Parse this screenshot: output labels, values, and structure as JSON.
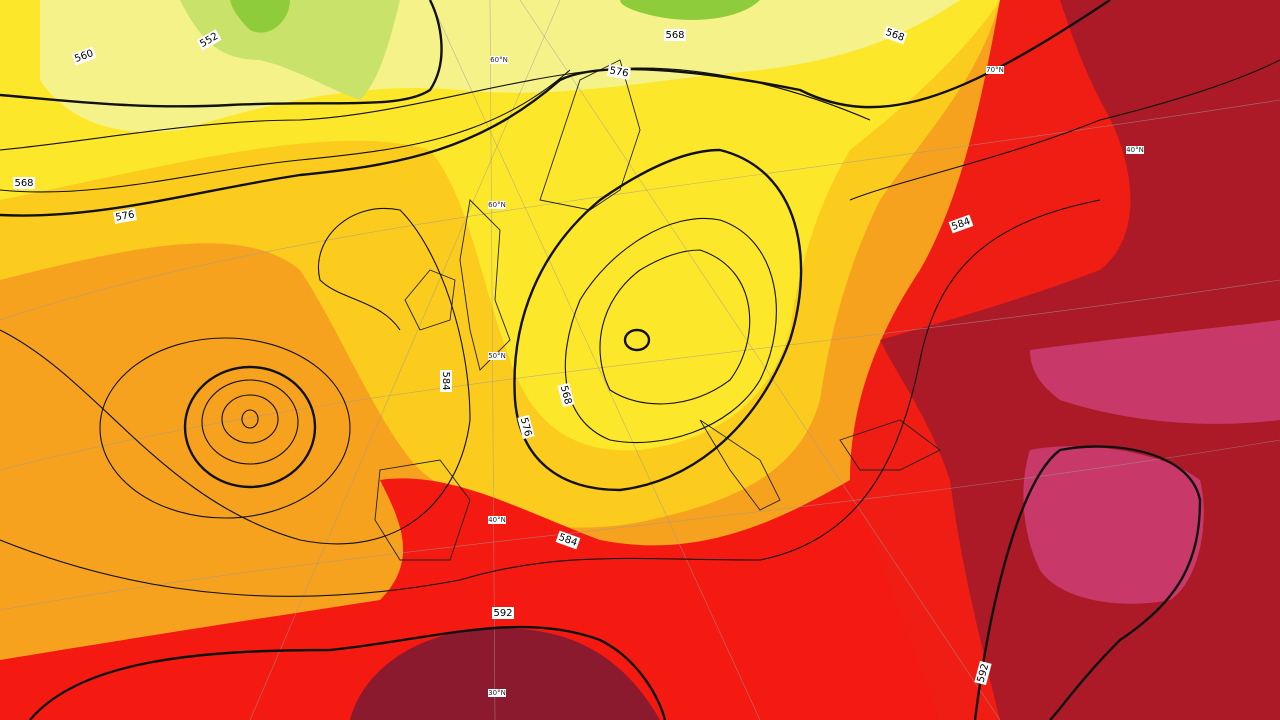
{
  "map": {
    "contour_labels": [
      "552",
      "560",
      "568",
      "576",
      "568",
      "568",
      "576",
      "584",
      "568",
      "576",
      "584",
      "584",
      "592",
      "592"
    ],
    "latitude_labels": [
      "60°N",
      "60°N",
      "50°N",
      "40°N",
      "30°N",
      "70°N",
      "40°N"
    ]
  }
}
